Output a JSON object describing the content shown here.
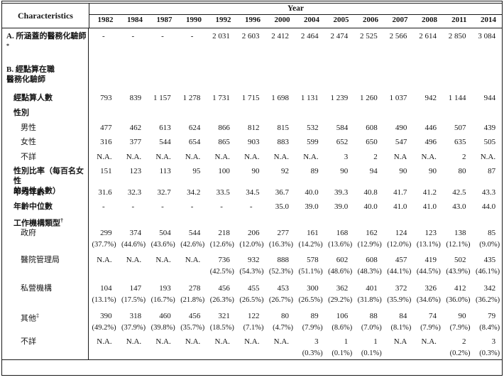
{
  "table": {
    "title_column": "Characteristics",
    "year_header": "Year",
    "years": [
      "1982",
      "1984",
      "1987",
      "1990",
      "1992",
      "1996",
      "2000",
      "2004",
      "2005",
      "2006",
      "2007",
      "2008",
      "2011",
      "2014"
    ],
    "rows": [
      {
        "id": "covered",
        "label": "A. 所涵蓋的醫務化驗師",
        "sup": "*",
        "bold": true,
        "indent": 0,
        "values": [
          "-",
          "-",
          "-",
          "-",
          "2 031",
          "2 603",
          "2 412",
          "2 464",
          "2 474",
          "2 525",
          "2 566",
          "2 614",
          "2 850",
          "3 084"
        ],
        "pct": null
      },
      {
        "id": "enumerated_hdr",
        "label": "B. 經點算在職\n醫務化驗師",
        "sup": "",
        "bold": true,
        "indent": 0,
        "values": null,
        "pct": null
      },
      {
        "id": "enumerated_count",
        "label": "經點算人數",
        "sup": "",
        "bold": true,
        "indent": 1,
        "values": [
          "793",
          "839",
          "1 157",
          "1 278",
          "1 731",
          "1 715",
          "1 698",
          "1 131",
          "1 239",
          "1 260",
          "1 037",
          "942",
          "1 144",
          "944"
        ],
        "pct": null
      },
      {
        "id": "sex_hdr",
        "label": "性別",
        "sup": "",
        "bold": true,
        "indent": 1,
        "values": null,
        "pct": null
      },
      {
        "id": "male",
        "label": "男性",
        "sup": "",
        "bold": false,
        "indent": 2,
        "values": [
          "477",
          "462",
          "613",
          "624",
          "866",
          "812",
          "815",
          "532",
          "584",
          "608",
          "490",
          "446",
          "507",
          "439"
        ],
        "pct": null
      },
      {
        "id": "female",
        "label": "女性",
        "sup": "",
        "bold": false,
        "indent": 2,
        "values": [
          "316",
          "377",
          "544",
          "654",
          "865",
          "903",
          "883",
          "599",
          "652",
          "650",
          "547",
          "496",
          "635",
          "505"
        ],
        "pct": null
      },
      {
        "id": "sex_unknown",
        "label": "不詳",
        "sup": "",
        "bold": false,
        "indent": 2,
        "values": [
          "N.A.",
          "N.A.",
          "N.A.",
          "N.A.",
          "N.A.",
          "N.A.",
          "N.A.",
          "N.A.",
          "3",
          "2",
          "N.A",
          "N.A.",
          "2",
          "N.A."
        ],
        "pct": null
      },
      {
        "id": "sex_ratio",
        "label": "性別比率（每百名女性\n的男性人數）",
        "sup": "",
        "bold": true,
        "indent": 1,
        "values": [
          "151",
          "123",
          "113",
          "95",
          "100",
          "90",
          "92",
          "89",
          "90",
          "94",
          "90",
          "90",
          "80",
          "87"
        ],
        "pct": null
      },
      {
        "id": "mean_age",
        "label": "平均年齡",
        "sup": "",
        "bold": true,
        "indent": 1,
        "values": [
          "31.6",
          "32.3",
          "32.7",
          "34.2",
          "33.5",
          "34.5",
          "36.7",
          "40.0",
          "39.3",
          "40.8",
          "41.7",
          "41.2",
          "42.5",
          "43.3"
        ],
        "pct": null
      },
      {
        "id": "median_age",
        "label": "年齡中位數",
        "sup": "",
        "bold": true,
        "indent": 1,
        "values": [
          "-",
          "-",
          "-",
          "-",
          "-",
          "-",
          "35.0",
          "39.0",
          "39.0",
          "40.0",
          "41.0",
          "41.0",
          "43.0",
          "44.0"
        ],
        "pct": null
      },
      {
        "id": "org_hdr",
        "label": "工作機構類型",
        "sup": "†",
        "bold": true,
        "indent": 1,
        "values": null,
        "pct": null
      },
      {
        "id": "gov",
        "label": "政府",
        "sup": "",
        "bold": false,
        "indent": 2,
        "values": [
          "299",
          "374",
          "504",
          "544",
          "218",
          "206",
          "277",
          "161",
          "168",
          "162",
          "124",
          "123",
          "138",
          "85"
        ],
        "pct": [
          "(37.7%)",
          "(44.6%)",
          "(43.6%)",
          "(42.6%)",
          "(12.6%)",
          "(12.0%)",
          "(16.3%)",
          "(14.2%)",
          "(13.6%)",
          "(12.9%)",
          "(12.0%)",
          "(13.1%)",
          "(12.1%)",
          "(9.0%)"
        ]
      },
      {
        "id": "ha",
        "label": "醫院管理局",
        "sup": "",
        "bold": false,
        "indent": 2,
        "values": [
          "N.A.",
          "N.A.",
          "N.A.",
          "N.A.",
          "736",
          "932",
          "888",
          "578",
          "602",
          "608",
          "457",
          "419",
          "502",
          "435"
        ],
        "pct": [
          "",
          "",
          "",
          "",
          "(42.5%)",
          "(54.3%)",
          "(52.3%)",
          "(51.1%)",
          "(48.6%)",
          "(48.3%)",
          "(44.1%)",
          "(44.5%)",
          "(43.9%)",
          "(46.1%)"
        ]
      },
      {
        "id": "private",
        "label": "私營機構",
        "sup": "",
        "bold": false,
        "indent": 2,
        "values": [
          "104",
          "147",
          "193",
          "278",
          "456",
          "455",
          "453",
          "300",
          "362",
          "401",
          "372",
          "326",
          "412",
          "342"
        ],
        "pct": [
          "(13.1%)",
          "(17.5%)",
          "(16.7%)",
          "(21.8%)",
          "(26.3%)",
          "(26.5%)",
          "(26.7%)",
          "(26.5%)",
          "(29.2%)",
          "(31.8%)",
          "(35.9%)",
          "(34.6%)",
          "(36.0%)",
          "(36.2%)"
        ]
      },
      {
        "id": "others",
        "label": "其他",
        "sup": "‡",
        "bold": false,
        "indent": 2,
        "values": [
          "390",
          "318",
          "460",
          "456",
          "321",
          "122",
          "80",
          "89",
          "106",
          "88",
          "84",
          "74",
          "90",
          "79"
        ],
        "pct": [
          "(49.2%)",
          "(37.9%)",
          "(39.8%)",
          "(35.7%)",
          "(18.5%)",
          "(7.1%)",
          "(4.7%)",
          "(7.9%)",
          "(8.6%)",
          "(7.0%)",
          "(8.1%)",
          "(7.9%)",
          "(7.9%)",
          "(8.4%)"
        ]
      },
      {
        "id": "org_unknown",
        "label": "不詳",
        "sup": "",
        "bold": false,
        "indent": 2,
        "values": [
          "N.A.",
          "N.A.",
          "N.A.",
          "N.A.",
          "N.A.",
          "N.A.",
          "N.A.",
          "3",
          "1",
          "1",
          "N.A",
          "N.A.",
          "2",
          "3"
        ],
        "pct": [
          "",
          "",
          "",
          "",
          "",
          "",
          "",
          "(0.3%)",
          "(0.1%)",
          "(0.1%)",
          "",
          "",
          "(0.2%)",
          "(0.3%)"
        ]
      }
    ]
  }
}
